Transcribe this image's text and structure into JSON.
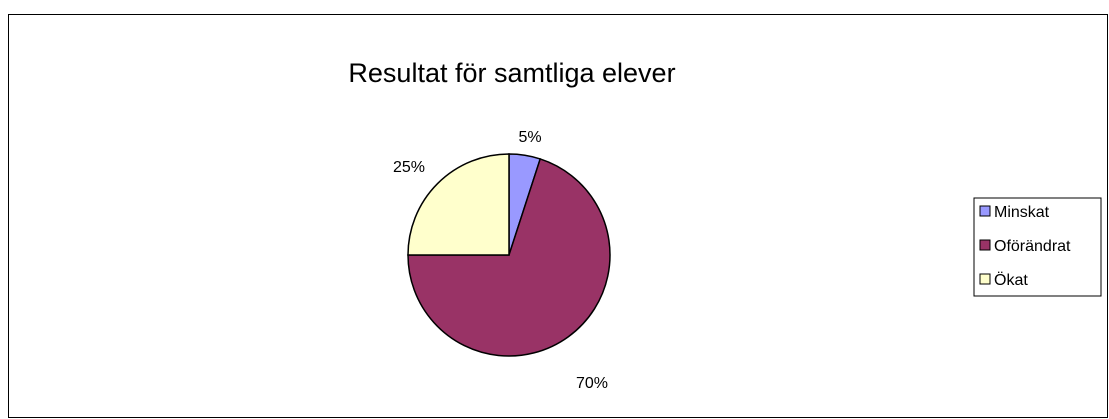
{
  "chart_data": {
    "type": "pie",
    "title": "Resultat för samtliga elever",
    "categories": [
      "Minskat",
      "Oförändrat",
      "Ökat"
    ],
    "values": [
      5,
      70,
      25
    ],
    "data_labels": [
      "5%",
      "70%",
      "25%"
    ],
    "colors": [
      "#9999ff",
      "#993366",
      "#ffffcc"
    ],
    "legend": {
      "position": "right",
      "entries": [
        "Minskat",
        "Oförändrat",
        "Ökat"
      ]
    },
    "start_angle_deg": 0,
    "direction": "clockwise"
  }
}
